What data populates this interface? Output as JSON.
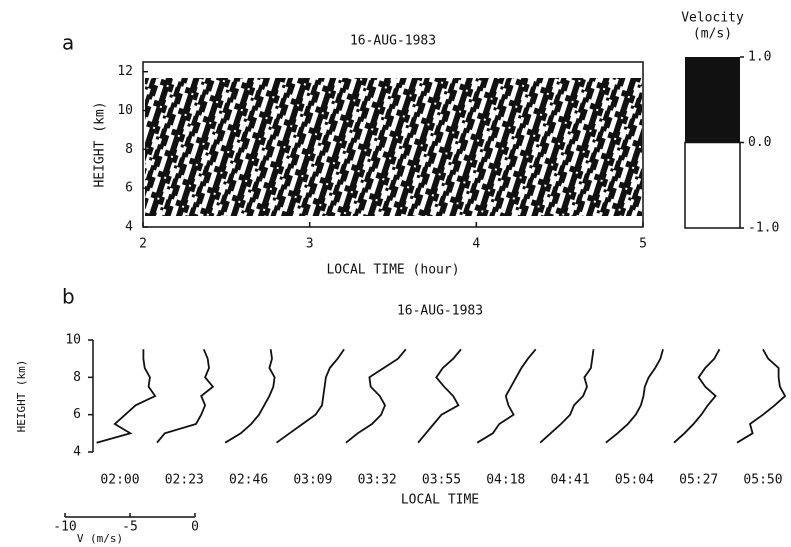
{
  "chart_data": [
    {
      "type": "heatmap",
      "panel_label": "a",
      "title": "16-AUG-1983",
      "xlabel": "LOCAL TIME (hour)",
      "ylabel": "HEIGHT (km)",
      "xlim": [
        2,
        5
      ],
      "xticks": [
        2,
        3,
        4,
        5
      ],
      "ylim": [
        4,
        12.5
      ],
      "yticks": [
        4,
        6,
        8,
        10,
        12
      ],
      "colorbar": {
        "title": "Velocity",
        "unit": "(m/s)",
        "lim": [
          -1,
          1
        ],
        "ticks": [
          {
            "value": 1,
            "label": "1.0"
          },
          {
            "value": 0,
            "label": "0.0"
          },
          {
            "value": -1,
            "label": "-1.0"
          }
        ],
        "colors": [
          "#ffffff",
          "#111111"
        ]
      }
    },
    {
      "type": "profiles",
      "panel_label": "b",
      "title": "16-AUG-1983",
      "xlabel": "LOCAL TIME",
      "ylabel": "HEIGHT (km)",
      "ylim": [
        4,
        10
      ],
      "yticks": [
        4,
        6,
        8,
        10
      ],
      "categories": [
        "02:00",
        "02:23",
        "02:46",
        "03:09",
        "03:32",
        "03:55",
        "04:18",
        "04:41",
        "05:04",
        "05:27",
        "05:50"
      ],
      "y": [
        4.5,
        5,
        5.5,
        6,
        6.5,
        7,
        7.5,
        8,
        8.5,
        9,
        9.5
      ],
      "scale": {
        "label": "V (m/s)",
        "xlim": [
          -10,
          0
        ],
        "xticks": [
          -10,
          -5,
          0
        ]
      },
      "color": "#111111",
      "series": [
        {
          "values": [
            -1.8,
            0.8,
            -0.4,
            0.4,
            1.2,
            2.7,
            2.2,
            2.3,
            1.9,
            1.8,
            1.8
          ]
        },
        {
          "values": [
            -2.1,
            -1.5,
            0.9,
            1.3,
            1.6,
            1.3,
            2.2,
            1.6,
            1.9,
            1.8,
            1.5
          ]
        },
        {
          "values": [
            -1.8,
            -0.6,
            0.2,
            0.8,
            1.2,
            1.6,
            1.9,
            2.0,
            1.6,
            1.8,
            1.7
          ]
        },
        {
          "values": [
            -2.8,
            -1.8,
            -0.8,
            0.2,
            0.7,
            0.8,
            0.9,
            1.0,
            1.3,
            1.9,
            2.4
          ]
        },
        {
          "values": [
            -2.4,
            -1.5,
            -0.4,
            0.3,
            0.6,
            0.2,
            -0.5,
            -0.6,
            0.5,
            1.6,
            2.2
          ]
        },
        {
          "values": [
            -1.8,
            -1.2,
            -0.6,
            0.0,
            1.3,
            0.9,
            0.2,
            -0.4,
            0.1,
            0.9,
            1.5
          ]
        },
        {
          "values": [
            -2.2,
            -1.0,
            -0.5,
            0.6,
            0.2,
            0.0,
            0.4,
            0.8,
            1.2,
            1.7,
            2.3
          ]
        },
        {
          "values": [
            -2.3,
            -1.5,
            -0.7,
            0.0,
            0.3,
            1.0,
            1.3,
            1.1,
            1.6,
            1.7,
            1.8
          ]
        },
        {
          "values": [
            -2.2,
            -1.3,
            -0.5,
            0.1,
            0.5,
            0.7,
            0.8,
            1.1,
            1.6,
            2.0,
            2.2
          ]
        },
        {
          "values": [
            -1.9,
            -1.1,
            -0.4,
            0.2,
            0.7,
            1.3,
            0.5,
            0.0,
            0.5,
            1.2,
            1.6
          ]
        },
        {
          "values": [
            -2.0,
            -0.8,
            -1.0,
            0.0,
            0.9,
            1.7,
            1.3,
            1.2,
            1.2,
            0.4,
            0.0
          ]
        }
      ]
    }
  ]
}
